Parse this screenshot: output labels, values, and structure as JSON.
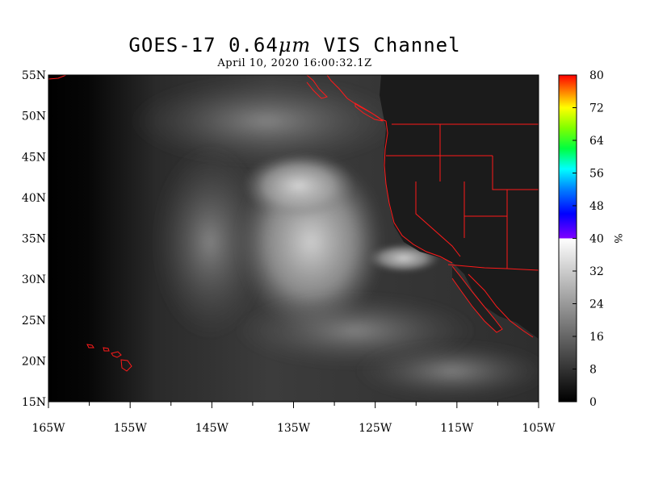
{
  "title": {
    "prefix": "GOES-17  0.64",
    "unit": "μm",
    "suffix": " VIS Channel"
  },
  "subtitle": "April 10,  2020 16:00:32.1Z",
  "map": {
    "lon_range": [
      -165,
      -105
    ],
    "lat_range": [
      15,
      55
    ],
    "lat_ticks": [
      {
        "value": 55,
        "label": "55N"
      },
      {
        "value": 50,
        "label": "50N"
      },
      {
        "value": 45,
        "label": "45N"
      },
      {
        "value": 40,
        "label": "40N"
      },
      {
        "value": 35,
        "label": "35N"
      },
      {
        "value": 30,
        "label": "30N"
      },
      {
        "value": 25,
        "label": "25N"
      },
      {
        "value": 20,
        "label": "20N"
      },
      {
        "value": 15,
        "label": "15N"
      }
    ],
    "lon_ticks": [
      {
        "value": -165,
        "label": "165W"
      },
      {
        "value": -155,
        "label": "155W"
      },
      {
        "value": -145,
        "label": "145W"
      },
      {
        "value": -135,
        "label": "135W"
      },
      {
        "value": -125,
        "label": "125W"
      },
      {
        "value": -115,
        "label": "115W"
      },
      {
        "value": -105,
        "label": "105W"
      }
    ],
    "boundary_color": "#ff1a1a",
    "background_color": "#000000"
  },
  "colorbar": {
    "min": 0,
    "max": 80,
    "unit_label": "%",
    "ticks": [
      {
        "value": 80,
        "label": "80"
      },
      {
        "value": 72,
        "label": "72"
      },
      {
        "value": 64,
        "label": "64"
      },
      {
        "value": 56,
        "label": "56"
      },
      {
        "value": 48,
        "label": "48"
      },
      {
        "value": 40,
        "label": "40"
      },
      {
        "value": 32,
        "label": "32"
      },
      {
        "value": 24,
        "label": "24"
      },
      {
        "value": 16,
        "label": "16"
      },
      {
        "value": 8,
        "label": "8"
      },
      {
        "value": 0,
        "label": "0"
      }
    ],
    "gray_range": [
      0,
      40
    ],
    "color_stops": [
      {
        "value": 40,
        "color": "#7f00ff"
      },
      {
        "value": 46,
        "color": "#0000ff"
      },
      {
        "value": 52,
        "color": "#0080ff"
      },
      {
        "value": 57,
        "color": "#00ffff"
      },
      {
        "value": 62,
        "color": "#00ff40"
      },
      {
        "value": 67,
        "color": "#80ff00"
      },
      {
        "value": 72,
        "color": "#ffff00"
      },
      {
        "value": 76,
        "color": "#ff8000"
      },
      {
        "value": 80,
        "color": "#ff0000"
      }
    ]
  }
}
